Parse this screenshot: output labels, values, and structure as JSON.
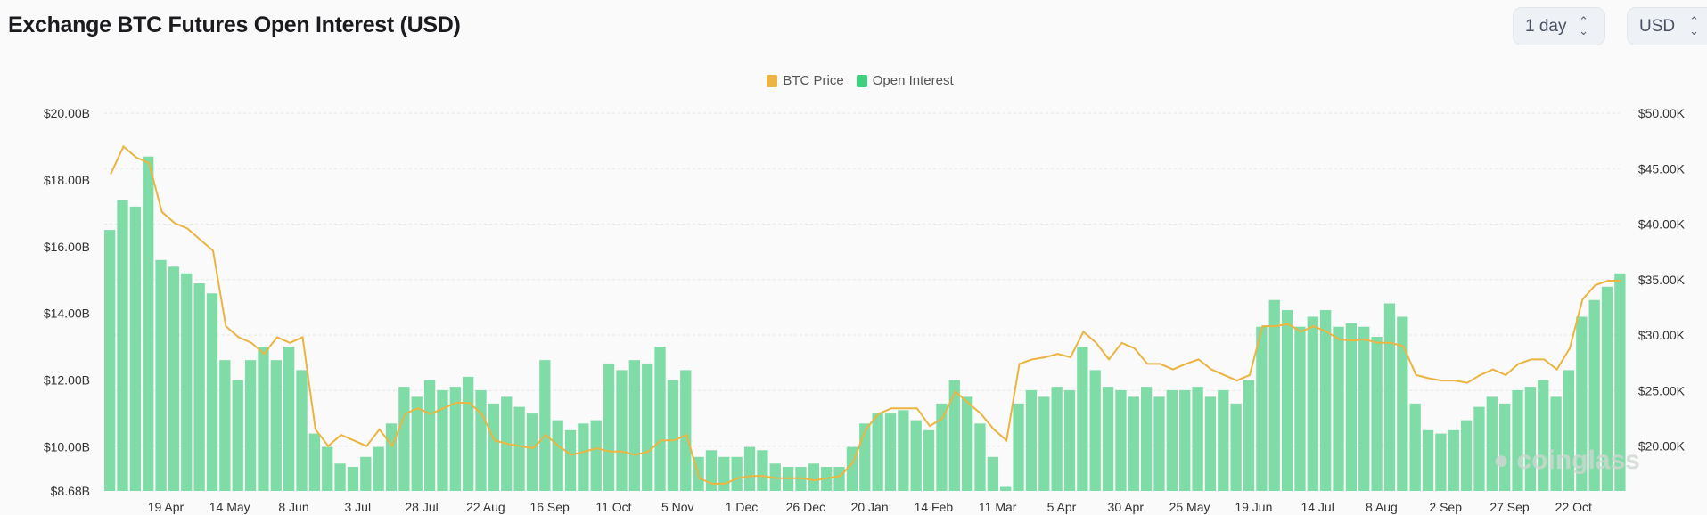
{
  "header": {
    "title": "Exchange BTC Futures Open Interest (USD)"
  },
  "controls": {
    "interval": "1 day",
    "currency": "USD"
  },
  "icons": {
    "select_chevron": "chevron-up-down-icon",
    "watermark": "coinglass-logo"
  },
  "watermark": "coinglass",
  "colors": {
    "oi": "#3fd07f",
    "price": "#ecb440",
    "background": "#fafafa"
  },
  "chart_data": {
    "type": "bar+line",
    "title": "Exchange BTC Futures Open Interest (USD)",
    "legend": {
      "placement": "top-center",
      "entries": [
        "BTC Price",
        "Open Interest"
      ]
    },
    "grid": true,
    "x_range": [
      "2022-03-26",
      "2023-11-08"
    ],
    "x_ticks": [
      {
        "date": "2022-04-19",
        "label": "19 Apr"
      },
      {
        "date": "2022-05-14",
        "label": "14 May"
      },
      {
        "date": "2022-06-08",
        "label": "8 Jun"
      },
      {
        "date": "2022-07-03",
        "label": "3 Jul"
      },
      {
        "date": "2022-07-28",
        "label": "28 Jul"
      },
      {
        "date": "2022-08-22",
        "label": "22 Aug"
      },
      {
        "date": "2022-09-16",
        "label": "16 Sep"
      },
      {
        "date": "2022-10-11",
        "label": "11 Oct"
      },
      {
        "date": "2022-11-05",
        "label": "5 Nov"
      },
      {
        "date": "2022-11-30",
        "label": "1 Dec"
      },
      {
        "date": "2022-12-25",
        "label": "26 Dec"
      },
      {
        "date": "2023-01-19",
        "label": "20 Jan"
      },
      {
        "date": "2023-02-13",
        "label": "14 Feb"
      },
      {
        "date": "2023-03-10",
        "label": "11 Mar"
      },
      {
        "date": "2023-04-04",
        "label": "5 Apr"
      },
      {
        "date": "2023-04-29",
        "label": "30 Apr"
      },
      {
        "date": "2023-05-24",
        "label": "25 May"
      },
      {
        "date": "2023-06-18",
        "label": "19 Jun"
      },
      {
        "date": "2023-07-13",
        "label": "14 Jul"
      },
      {
        "date": "2023-08-07",
        "label": "8 Aug"
      },
      {
        "date": "2023-09-01",
        "label": "2 Sep"
      },
      {
        "date": "2023-09-26",
        "label": "27 Sep"
      },
      {
        "date": "2023-10-21",
        "label": "22 Oct"
      }
    ],
    "y_left": {
      "min": 8.68,
      "max": 20,
      "ticks": [
        {
          "v": 20,
          "label": "$20.00B"
        },
        {
          "v": 18,
          "label": "$18.00B"
        },
        {
          "v": 16,
          "label": "$16.00B"
        },
        {
          "v": 14,
          "label": "$14.00B"
        },
        {
          "v": 12,
          "label": "$12.00B"
        },
        {
          "v": 10,
          "label": "$10.00B"
        },
        {
          "v": 8.68,
          "label": "$8.68B"
        }
      ],
      "unit": "USD billions"
    },
    "y_right": {
      "min": 15.95,
      "max": 50,
      "ticks": [
        {
          "v": 50,
          "label": "$50.00K"
        },
        {
          "v": 45,
          "label": "$45.00K"
        },
        {
          "v": 40,
          "label": "$40.00K"
        },
        {
          "v": 35,
          "label": "$35.00K"
        },
        {
          "v": 30,
          "label": "$30.00K"
        },
        {
          "v": 25,
          "label": "$25.00K"
        },
        {
          "v": 20,
          "label": "$20.00K"
        }
      ],
      "unit": "USD thousands"
    },
    "x": [
      "2022-03-26",
      "2022-03-31",
      "2022-04-05",
      "2022-04-10",
      "2022-04-15",
      "2022-04-20",
      "2022-04-25",
      "2022-04-30",
      "2022-05-05",
      "2022-05-10",
      "2022-05-15",
      "2022-05-20",
      "2022-05-25",
      "2022-05-30",
      "2022-06-04",
      "2022-06-09",
      "2022-06-14",
      "2022-06-19",
      "2022-06-24",
      "2022-06-29",
      "2022-07-04",
      "2022-07-09",
      "2022-07-14",
      "2022-07-19",
      "2022-07-24",
      "2022-07-29",
      "2022-08-03",
      "2022-08-08",
      "2022-08-13",
      "2022-08-18",
      "2022-08-23",
      "2022-08-28",
      "2022-09-02",
      "2022-09-07",
      "2022-09-12",
      "2022-09-17",
      "2022-09-22",
      "2022-09-27",
      "2022-10-02",
      "2022-10-07",
      "2022-10-12",
      "2022-10-17",
      "2022-10-22",
      "2022-10-27",
      "2022-11-01",
      "2022-11-06",
      "2022-11-11",
      "2022-11-16",
      "2022-11-21",
      "2022-11-26",
      "2022-12-01",
      "2022-12-06",
      "2022-12-11",
      "2022-12-16",
      "2022-12-21",
      "2022-12-26",
      "2022-12-31",
      "2023-01-05",
      "2023-01-10",
      "2023-01-15",
      "2023-01-20",
      "2023-01-25",
      "2023-01-30",
      "2023-02-04",
      "2023-02-09",
      "2023-02-14",
      "2023-02-19",
      "2023-02-24",
      "2023-03-01",
      "2023-03-06",
      "2023-03-11",
      "2023-03-16",
      "2023-03-21",
      "2023-03-26",
      "2023-03-31",
      "2023-04-05",
      "2023-04-10",
      "2023-04-15",
      "2023-04-20",
      "2023-04-25",
      "2023-04-30",
      "2023-05-05",
      "2023-05-10",
      "2023-05-15",
      "2023-05-20",
      "2023-05-25",
      "2023-05-30",
      "2023-06-04",
      "2023-06-09",
      "2023-06-14",
      "2023-06-19",
      "2023-06-24",
      "2023-06-29",
      "2023-07-04",
      "2023-07-09",
      "2023-07-14",
      "2023-07-19",
      "2023-07-24",
      "2023-07-29",
      "2023-08-03",
      "2023-08-08",
      "2023-08-13",
      "2023-08-18",
      "2023-08-23",
      "2023-08-28",
      "2023-09-02",
      "2023-09-07",
      "2023-09-12",
      "2023-09-17",
      "2023-09-22",
      "2023-09-27",
      "2023-10-02",
      "2023-10-07",
      "2023-10-12",
      "2023-10-17",
      "2023-10-22",
      "2023-10-27",
      "2023-11-01",
      "2023-11-06"
    ],
    "series": [
      {
        "name": "Open Interest",
        "type": "bar",
        "axis": "left",
        "color": "#3fd07f",
        "values": [
          16.5,
          17.4,
          17.2,
          18.7,
          15.6,
          15.4,
          15.2,
          14.9,
          14.6,
          12.6,
          12.0,
          12.6,
          13.0,
          12.6,
          13.0,
          12.3,
          10.4,
          10.0,
          9.5,
          9.4,
          9.7,
          10.0,
          10.7,
          11.8,
          11.5,
          12.0,
          11.7,
          11.8,
          12.1,
          11.7,
          11.3,
          11.5,
          11.2,
          11.0,
          12.6,
          10.8,
          10.5,
          10.7,
          10.8,
          12.5,
          12.3,
          12.6,
          12.5,
          13.0,
          12.0,
          12.3,
          9.7,
          9.9,
          9.7,
          9.7,
          10.0,
          9.9,
          9.5,
          9.4,
          9.4,
          9.5,
          9.4,
          9.4,
          10.0,
          10.7,
          11.0,
          11.0,
          11.1,
          10.8,
          10.5,
          11.3,
          12.0,
          11.5,
          10.7,
          9.7,
          8.8,
          11.3,
          11.7,
          11.5,
          11.8,
          11.7,
          13.0,
          12.3,
          11.8,
          11.7,
          11.5,
          11.8,
          11.5,
          11.7,
          11.7,
          11.8,
          11.5,
          11.7,
          11.3,
          12.0,
          13.6,
          14.4,
          14.1,
          13.6,
          13.9,
          14.1,
          13.6,
          13.7,
          13.6,
          13.3,
          14.3,
          13.9,
          11.3,
          10.5,
          10.4,
          10.5,
          10.8,
          11.2,
          11.5,
          11.3,
          11.7,
          11.8,
          12.0,
          11.5,
          12.3,
          13.9,
          14.4,
          14.8,
          15.2
        ]
      },
      {
        "name": "BTC Price",
        "type": "line",
        "axis": "right",
        "color": "#ecb440",
        "values": [
          44.5,
          47.0,
          46.0,
          45.5,
          41.1,
          40.1,
          39.6,
          38.6,
          37.6,
          30.8,
          29.8,
          29.3,
          28.3,
          29.8,
          29.3,
          29.8,
          21.5,
          20.0,
          21.0,
          20.5,
          20.0,
          21.5,
          20.0,
          22.9,
          23.4,
          22.9,
          23.4,
          23.9,
          23.9,
          22.9,
          20.5,
          20.2,
          20.0,
          19.8,
          21.0,
          20.0,
          19.2,
          19.5,
          19.8,
          19.5,
          19.5,
          19.2,
          19.5,
          20.5,
          20.5,
          21.0,
          17.1,
          16.6,
          16.6,
          17.1,
          17.3,
          17.3,
          17.1,
          17.1,
          17.1,
          16.9,
          17.1,
          17.3,
          18.5,
          21.5,
          22.9,
          23.4,
          23.4,
          23.4,
          21.8,
          22.5,
          24.9,
          23.9,
          22.9,
          21.5,
          20.5,
          27.4,
          27.8,
          28.0,
          28.3,
          28.0,
          30.3,
          29.3,
          27.8,
          29.3,
          28.8,
          27.4,
          27.4,
          26.9,
          27.4,
          27.8,
          26.9,
          26.4,
          25.9,
          26.4,
          30.8,
          30.8,
          31.0,
          30.3,
          30.8,
          30.3,
          29.6,
          29.5,
          29.6,
          29.3,
          29.3,
          29.0,
          26.4,
          26.1,
          25.9,
          25.9,
          25.7,
          26.4,
          26.9,
          26.4,
          27.4,
          27.8,
          27.8,
          26.9,
          28.8,
          33.2,
          34.5,
          34.9,
          34.9
        ]
      }
    ]
  }
}
